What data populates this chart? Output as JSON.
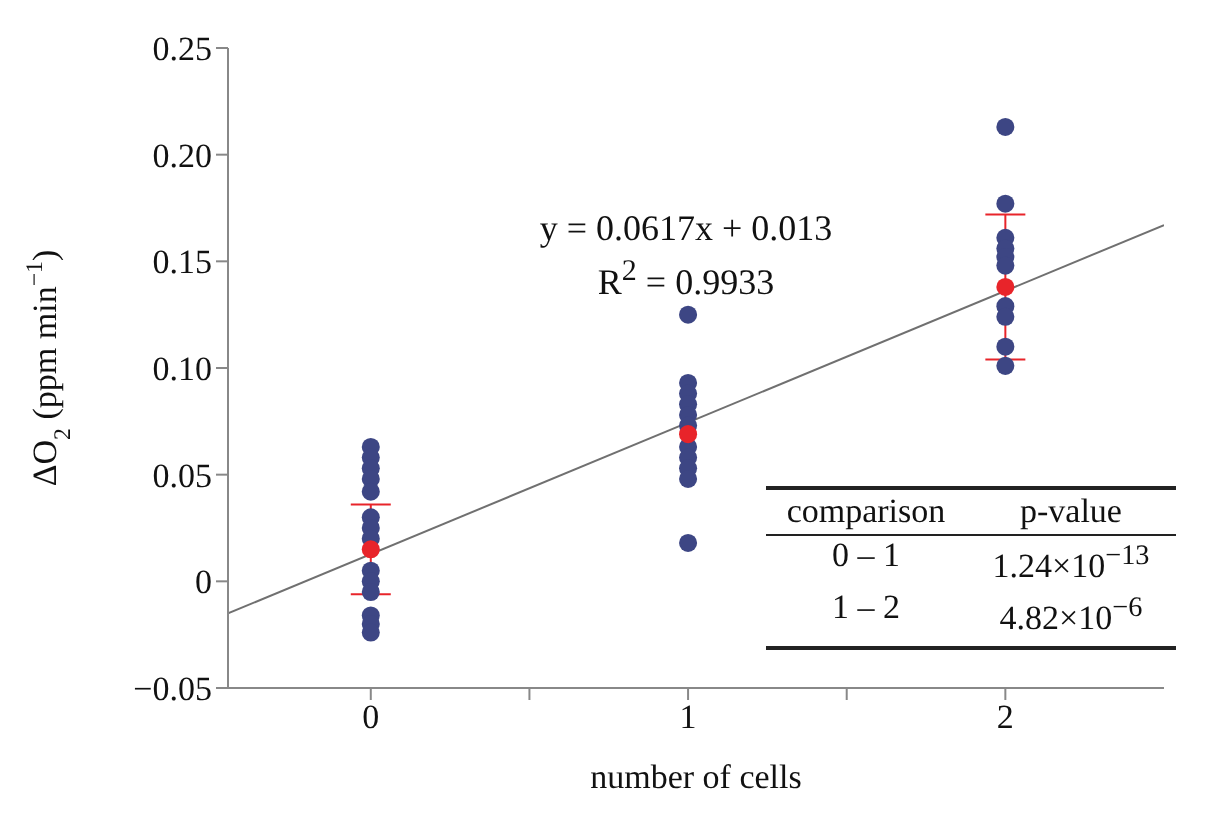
{
  "chart_data": {
    "type": "scatter",
    "xlabel": "number of cells",
    "ylabel": "ΔO$_{2}$ (ppm min$^{−1}$)",
    "xlim": [
      -0.45,
      2.5
    ],
    "xticks": [
      0,
      {
        "value": 0.5,
        "label": null
      },
      1,
      {
        "value": 1.5,
        "label": null
      },
      2
    ],
    "ylim": [
      -0.05,
      0.25
    ],
    "yticks": [
      {
        "value": -0.05,
        "label": "−0.05"
      },
      0,
      {
        "value": 0.05,
        "label": "0.05"
      },
      {
        "value": 0.1,
        "label": "0.10"
      },
      {
        "value": 0.15,
        "label": "0.15"
      },
      {
        "value": 0.2,
        "label": "0.20"
      },
      {
        "value": 0.25,
        "label": "0.25"
      }
    ],
    "grid": false,
    "marker": "circle",
    "series": [
      {
        "color": "#3d4684",
        "x": [
          0,
          0,
          0,
          0,
          0,
          0,
          0,
          0,
          0,
          0,
          0,
          0,
          0,
          0,
          1,
          1,
          1,
          1,
          1,
          1,
          1,
          1,
          1,
          1,
          1,
          2,
          2,
          2,
          2,
          2,
          2,
          2,
          2,
          2,
          2
        ],
        "values": [
          0.063,
          0.058,
          0.053,
          0.048,
          0.042,
          0.03,
          0.025,
          0.02,
          0.005,
          0,
          -0.005,
          -0.016,
          -0.02,
          -0.024,
          0.125,
          0.093,
          0.088,
          0.083,
          0.078,
          0.073,
          0.063,
          0.058,
          0.053,
          0.048,
          0.018,
          0.213,
          0.177,
          0.161,
          0.156,
          0.152,
          0.148,
          0.129,
          0.124,
          0.11,
          0.101
        ]
      },
      {
        "color": "#e8242a",
        "x": [
          0,
          1,
          2
        ],
        "values": [
          0.015,
          0.069,
          0.138
        ],
        "errors": [
          0.021,
          null,
          0.034
        ]
      },
      {
        "type": "line",
        "color": "#707070",
        "marker": "none",
        "x": [
          -0.45,
          2.5
        ],
        "values": [
          -0.015,
          0.167
        ]
      }
    ],
    "annotations": [
      "y = 0.0617x + 0.013",
      "R$^{2}$ = 0.9933",
      "comparison",
      "p-value",
      "0 – 1",
      "1.24×10$^{−13}$",
      "1 – 2",
      "4.82×10$^{−6}$"
    ]
  }
}
